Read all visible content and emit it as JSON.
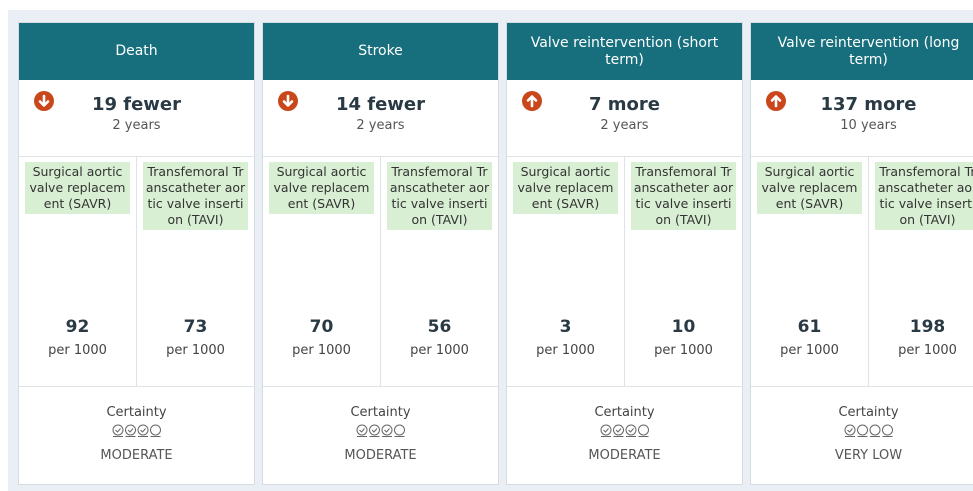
{
  "cards": [
    {
      "title": "Death",
      "effect": "19 fewer",
      "period": "2 years",
      "direction": "down",
      "groups": [
        {
          "label": "Surgical aortic valve replacement (SAVR)",
          "value": 92,
          "unit": "per 1000"
        },
        {
          "label": "Transfemoral Transcatheter aortic valve insertion (TAVI)",
          "value": 73,
          "unit": "per 1000"
        }
      ],
      "certainty_label": "Certainty",
      "certainty": "MODERATE"
    },
    {
      "title": "Stroke",
      "effect": "14 fewer",
      "period": "2 years",
      "direction": "down",
      "groups": [
        {
          "label": "Surgical aortic valve replacement (SAVR)",
          "value": 70,
          "unit": "per 1000"
        },
        {
          "label": "Transfemoral Transcatheter aortic valve insertion (TAVI)",
          "value": 56,
          "unit": "per 1000"
        }
      ],
      "certainty_label": "Certainty",
      "certainty": "MODERATE"
    },
    {
      "title": "Valve reintervention (short term)",
      "effect": "7 more",
      "period": "2 years",
      "direction": "up",
      "groups": [
        {
          "label": "Surgical aortic valve replacement (SAVR)",
          "value": 3,
          "unit": "per 1000"
        },
        {
          "label": "Transfemoral Transcatheter aortic valve insertion (TAVI)",
          "value": 10,
          "unit": "per 1000"
        }
      ],
      "certainty_label": "Certainty",
      "certainty": "MODERATE"
    },
    {
      "title": "Valve reintervention (long term)",
      "effect": "137 more",
      "period": "10 years",
      "direction": "up",
      "groups": [
        {
          "label": "Surgical aortic valve replacement (SAVR)",
          "value": 61,
          "unit": "per 1000"
        },
        {
          "label": "Transfemoral Transcatheter aortic valve insertion (TAVI)",
          "value": 198,
          "unit": "per 1000"
        }
      ],
      "certainty_label": "Certainty",
      "certainty": "VERY LOW"
    }
  ]
}
